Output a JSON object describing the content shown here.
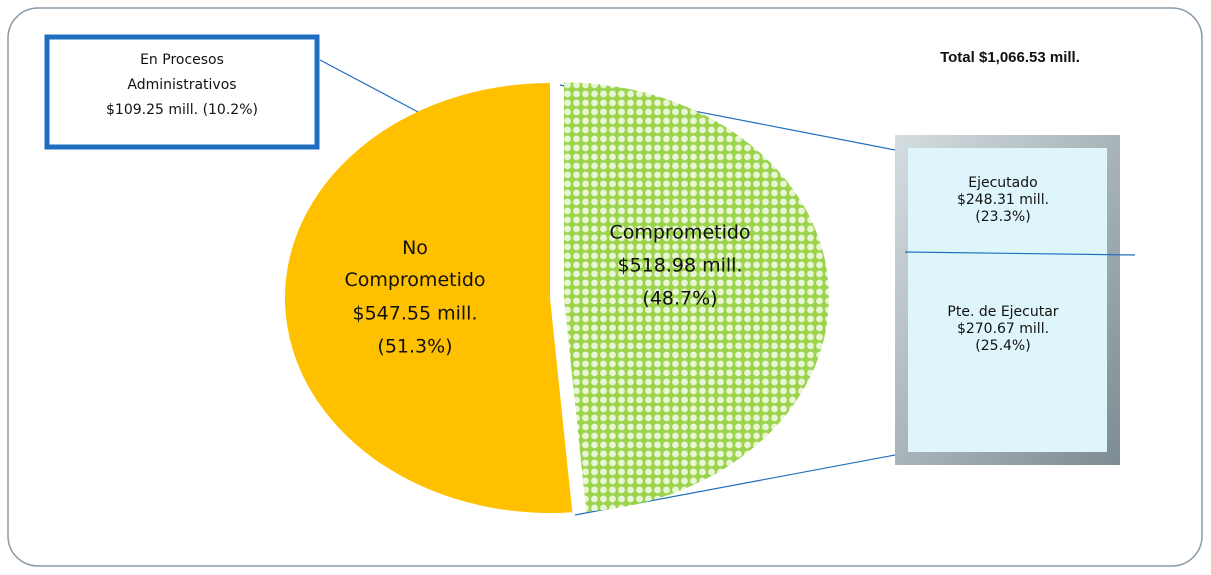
{
  "chart_data": {
    "type": "pie",
    "title": "Total $1,066.53 mill.",
    "categories": [
      "No Comprometido",
      "Comprometido"
    ],
    "values": [
      547.55,
      518.98
    ],
    "value_labels": [
      "$547.55 mill.",
      "$518.98 mill."
    ],
    "percent_labels": [
      "(51.3%)",
      "(48.7%)"
    ],
    "colors": [
      "#ffc000",
      "#9bd34a"
    ],
    "callout": {
      "lines": [
        "En Procesos",
        "Administrativos",
        "$109.25 mill. (10.2%)"
      ]
    },
    "breakdown": [
      {
        "lines": [
          "Ejecutado",
          "$248.31 mill.",
          "(23.3%)"
        ]
      },
      {
        "lines": [
          "Pte. de Ejecutar",
          "$270.67 mill.",
          "(25.4%)"
        ]
      }
    ]
  }
}
